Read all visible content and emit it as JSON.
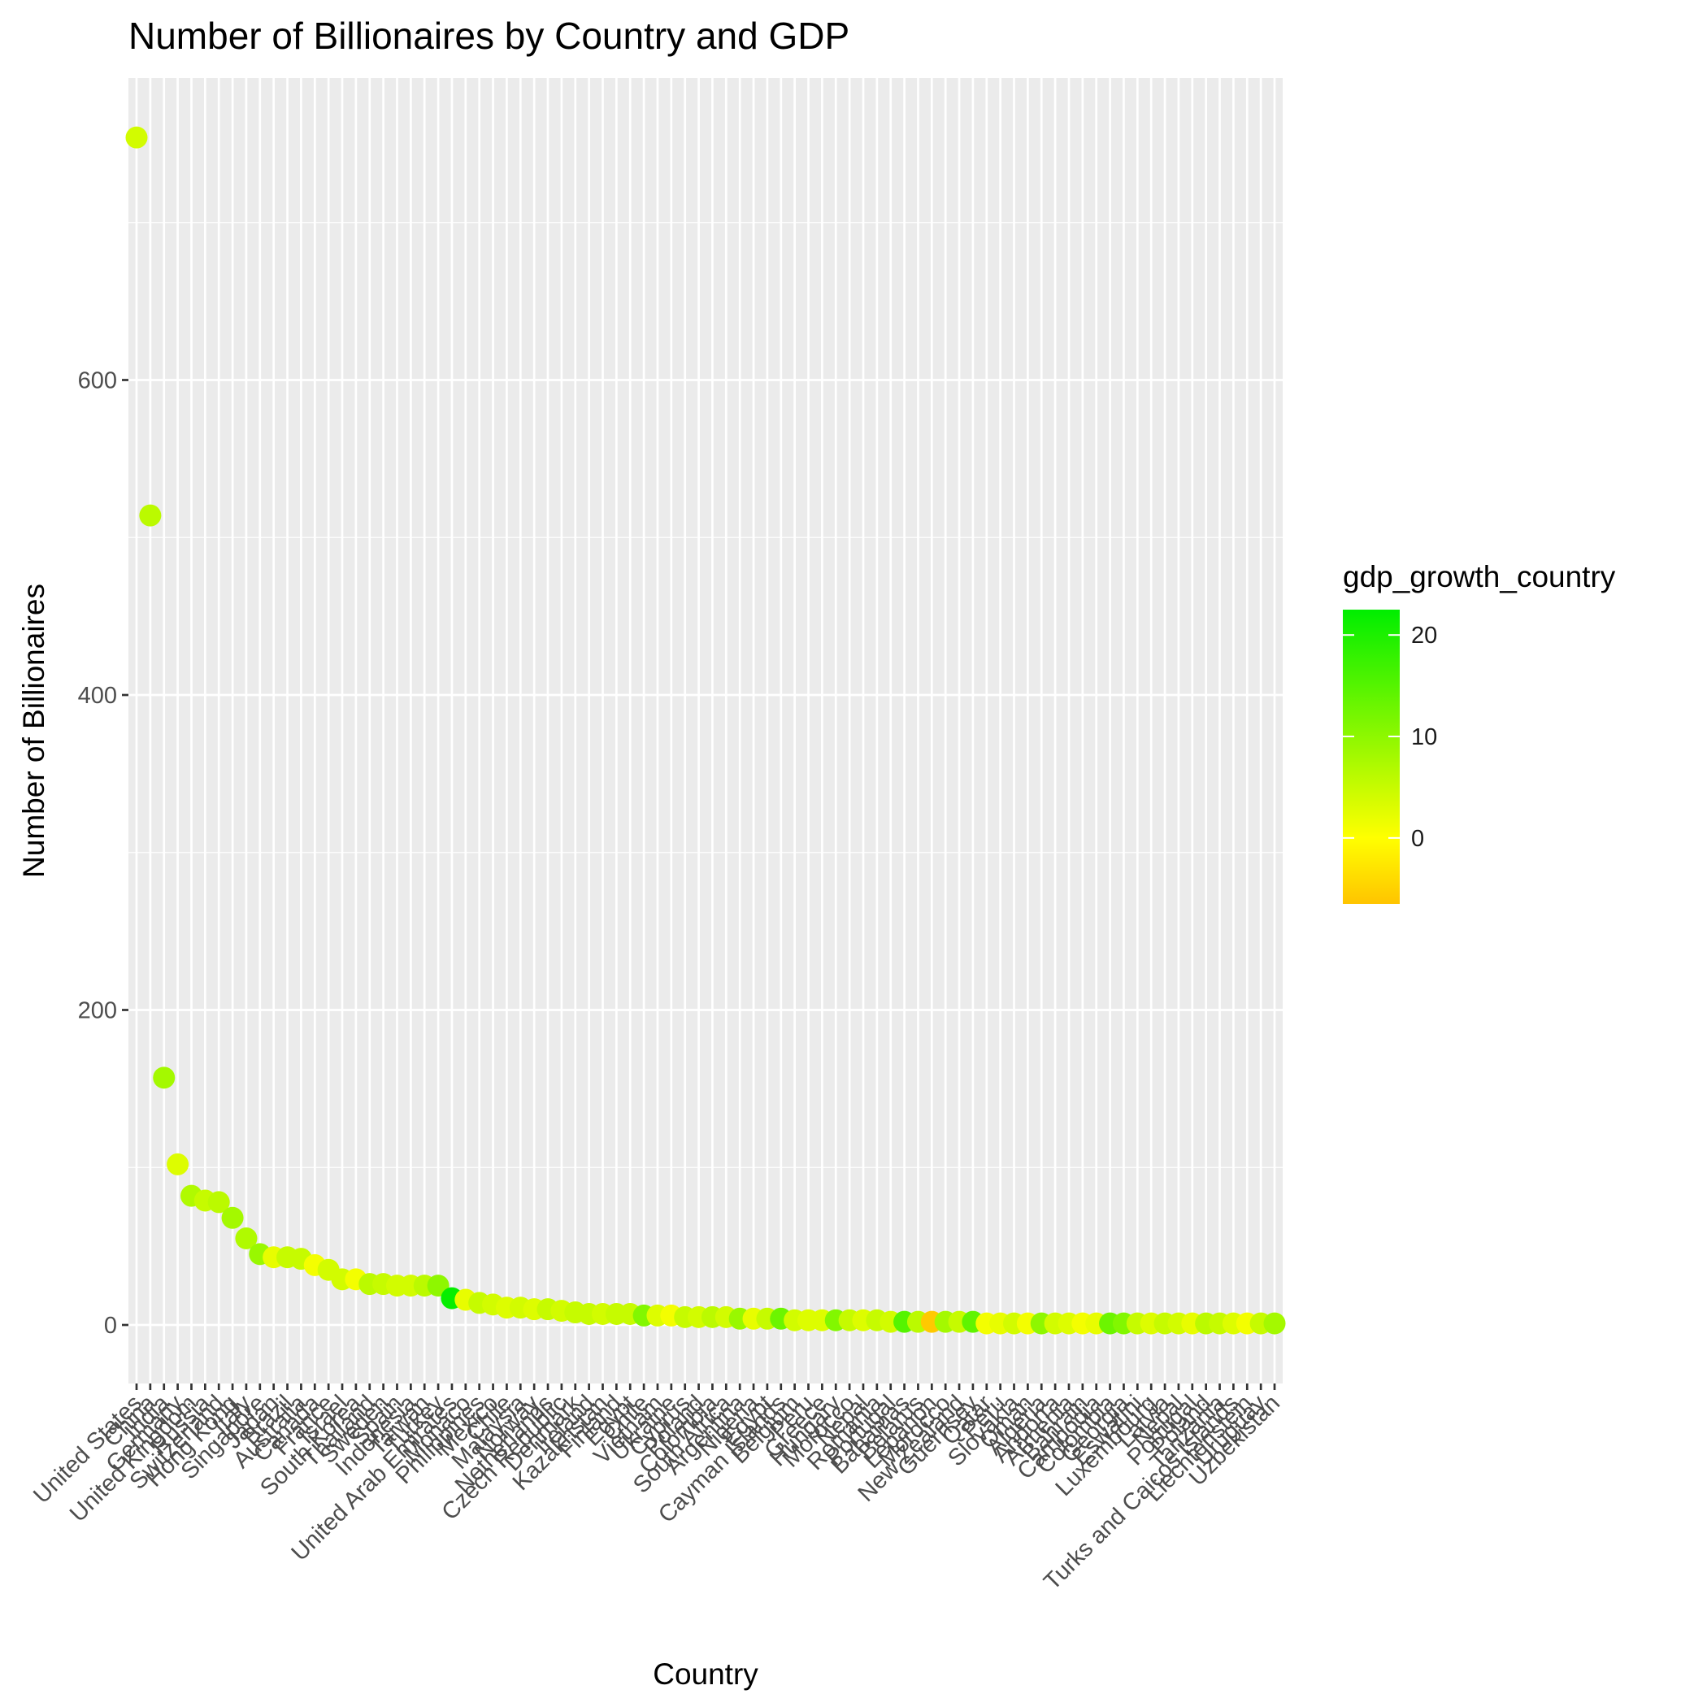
{
  "chart_data": {
    "type": "scatter",
    "title": "Number of Billionaires by Country and GDP",
    "xlabel": "Country",
    "ylabel": "Number of Billionaires",
    "ylim": [
      -38,
      790
    ],
    "y_ticks": [
      0,
      200,
      400,
      600
    ],
    "grid": true,
    "legend": {
      "title": "gdp_growth_country",
      "position": "right",
      "range": [
        -6.5,
        22.5
      ],
      "ticks": [
        0,
        10,
        20
      ],
      "colors": [
        "#ffc400",
        "#ffff00",
        "#00ee00"
      ]
    },
    "points": [
      {
        "country": "United States",
        "billionaires": 754,
        "gdp_growth": 4
      },
      {
        "country": "China",
        "billionaires": 514,
        "gdp_growth": 6
      },
      {
        "country": "India",
        "billionaires": 157,
        "gdp_growth": 8
      },
      {
        "country": "Germany",
        "billionaires": 102,
        "gdp_growth": 3
      },
      {
        "country": "United Kingdom",
        "billionaires": 82,
        "gdp_growth": 7
      },
      {
        "country": "Russia",
        "billionaires": 79,
        "gdp_growth": 5
      },
      {
        "country": "Switzerland",
        "billionaires": 78,
        "gdp_growth": 6
      },
      {
        "country": "Hong Kong",
        "billionaires": 68,
        "gdp_growth": 8
      },
      {
        "country": "Italy",
        "billionaires": 55,
        "gdp_growth": 7
      },
      {
        "country": "Singapore",
        "billionaires": 45,
        "gdp_growth": 9
      },
      {
        "country": "Japan",
        "billionaires": 43,
        "gdp_growth": 2
      },
      {
        "country": "Brazil",
        "billionaires": 43,
        "gdp_growth": 5
      },
      {
        "country": "Australia",
        "billionaires": 42,
        "gdp_growth": 5
      },
      {
        "country": "Canada",
        "billionaires": 38,
        "gdp_growth": 1
      },
      {
        "country": "France",
        "billionaires": 35,
        "gdp_growth": 4
      },
      {
        "country": "Israel",
        "billionaires": 29,
        "gdp_growth": 4
      },
      {
        "country": "South Korea",
        "billionaires": 29,
        "gdp_growth": 1
      },
      {
        "country": "Thailand",
        "billionaires": 26,
        "gdp_growth": 6
      },
      {
        "country": "Sweden",
        "billionaires": 26,
        "gdp_growth": 5
      },
      {
        "country": "Spain",
        "billionaires": 25,
        "gdp_growth": 4
      },
      {
        "country": "Indonesia",
        "billionaires": 25,
        "gdp_growth": 4
      },
      {
        "country": "Taiwan",
        "billionaires": 25,
        "gdp_growth": 6
      },
      {
        "country": "Turkey",
        "billionaires": 25,
        "gdp_growth": 10
      },
      {
        "country": "United Arab Emirates",
        "billionaires": 17,
        "gdp_growth": 22
      },
      {
        "country": "Monaco",
        "billionaires": 16,
        "gdp_growth": 2
      },
      {
        "country": "Philippines",
        "billionaires": 14,
        "gdp_growth": 5
      },
      {
        "country": "Mexico",
        "billionaires": 13,
        "gdp_growth": 4
      },
      {
        "country": "Chile",
        "billionaires": 11,
        "gdp_growth": 3
      },
      {
        "country": "Malaysia",
        "billionaires": 11,
        "gdp_growth": 4
      },
      {
        "country": "Norway",
        "billionaires": 10,
        "gdp_growth": 3
      },
      {
        "country": "Netherlands",
        "billionaires": 10,
        "gdp_growth": 5
      },
      {
        "country": "Czech Republic",
        "billionaires": 9,
        "gdp_growth": 4
      },
      {
        "country": "Denmark",
        "billionaires": 8,
        "gdp_growth": 5
      },
      {
        "country": "Ireland",
        "billionaires": 7,
        "gdp_growth": 5
      },
      {
        "country": "Kazakhstan",
        "billionaires": 7,
        "gdp_growth": 4
      },
      {
        "country": "Finland",
        "billionaires": 7,
        "gdp_growth": 5
      },
      {
        "country": "Egypt",
        "billionaires": 7,
        "gdp_growth": 5
      },
      {
        "country": "Chile",
        "billionaires": 6,
        "gdp_growth": 11
      },
      {
        "country": "Vietnam",
        "billionaires": 6,
        "gdp_growth": 3
      },
      {
        "country": "Ukraine",
        "billionaires": 6,
        "gdp_growth": 1
      },
      {
        "country": "Cyprus",
        "billionaires": 5,
        "gdp_growth": 5
      },
      {
        "country": "Poland",
        "billionaires": 5,
        "gdp_growth": 4
      },
      {
        "country": "Colombia",
        "billionaires": 5,
        "gdp_growth": 6
      },
      {
        "country": "South Africa",
        "billionaires": 5,
        "gdp_growth": 4
      },
      {
        "country": "Argentina",
        "billionaires": 4,
        "gdp_growth": 9
      },
      {
        "country": "Nigeria",
        "billionaires": 4,
        "gdp_growth": 2
      },
      {
        "country": "Egypt",
        "billionaires": 4,
        "gdp_growth": 5
      },
      {
        "country": "Cayman Islands",
        "billionaires": 4,
        "gdp_growth": 13
      },
      {
        "country": "Belgium",
        "billionaires": 3,
        "gdp_growth": 4
      },
      {
        "country": "Peru",
        "billionaires": 3,
        "gdp_growth": 3
      },
      {
        "country": "Greece",
        "billionaires": 3,
        "gdp_growth": 3
      },
      {
        "country": "Hungary",
        "billionaires": 3,
        "gdp_growth": 11
      },
      {
        "country": "Morocco",
        "billionaires": 3,
        "gdp_growth": 5
      },
      {
        "country": "Nepal",
        "billionaires": 3,
        "gdp_growth": 3
      },
      {
        "country": "Romania",
        "billionaires": 3,
        "gdp_growth": 5
      },
      {
        "country": "Portugal",
        "billionaires": 2,
        "gdp_growth": 4
      },
      {
        "country": "Bahamas",
        "billionaires": 2,
        "gdp_growth": 15
      },
      {
        "country": "Belarus",
        "billionaires": 2,
        "gdp_growth": 6
      },
      {
        "country": "Lebanon",
        "billionaires": 2,
        "gdp_growth": -6
      },
      {
        "country": "Morocco",
        "billionaires": 2,
        "gdp_growth": 8
      },
      {
        "country": "New Zealand",
        "billionaires": 2,
        "gdp_growth": 5
      },
      {
        "country": "Guernsey",
        "billionaires": 2,
        "gdp_growth": 14
      },
      {
        "country": "Qatar",
        "billionaires": 1,
        "gdp_growth": 1
      },
      {
        "country": "Peru",
        "billionaires": 1,
        "gdp_growth": 2
      },
      {
        "country": "Slovakia",
        "billionaires": 1,
        "gdp_growth": 4
      },
      {
        "country": "Oman",
        "billionaires": 1,
        "gdp_growth": 1
      },
      {
        "country": "Algeria",
        "billionaires": 1,
        "gdp_growth": 10
      },
      {
        "country": "Andorra",
        "billionaires": 1,
        "gdp_growth": 4
      },
      {
        "country": "Armenia",
        "billionaires": 1,
        "gdp_growth": 3
      },
      {
        "country": "Bahrain",
        "billionaires": 1,
        "gdp_growth": 1
      },
      {
        "country": "Cambodia",
        "billionaires": 1,
        "gdp_growth": 2
      },
      {
        "country": "Colombia",
        "billionaires": 1,
        "gdp_growth": 13
      },
      {
        "country": "Georgia",
        "billionaires": 1,
        "gdp_growth": 11
      },
      {
        "country": "Eswatini",
        "billionaires": 1,
        "gdp_growth": 5
      },
      {
        "country": "Luxembourg",
        "billionaires": 1,
        "gdp_growth": 3
      },
      {
        "country": "Latvia",
        "billionaires": 1,
        "gdp_growth": 5
      },
      {
        "country": "Nepal",
        "billionaires": 1,
        "gdp_growth": 4
      },
      {
        "country": "Portugal",
        "billionaires": 1,
        "gdp_growth": 2
      },
      {
        "country": "Poland",
        "billionaires": 1,
        "gdp_growth": 6
      },
      {
        "country": "Tanzania",
        "billionaires": 1,
        "gdp_growth": 5
      },
      {
        "country": "Turks and Caicos Islands",
        "billionaires": 1,
        "gdp_growth": 3
      },
      {
        "country": "Liechtenstein",
        "billionaires": 1,
        "gdp_growth": 1
      },
      {
        "country": "Uruguay",
        "billionaires": 1,
        "gdp_growth": 5
      },
      {
        "country": "Uzbekistan",
        "billionaires": 1,
        "gdp_growth": 8
      }
    ]
  }
}
